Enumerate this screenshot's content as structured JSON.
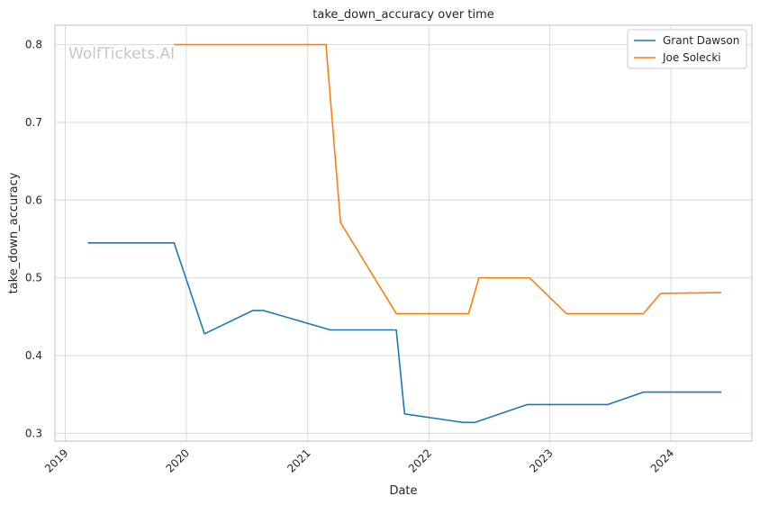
{
  "chart_data": {
    "type": "line",
    "title": "take_down_accuracy over time",
    "xlabel": "Date",
    "ylabel": "take_down_accuracy",
    "watermark": "WolfTickets.AI",
    "xlim": [
      "2018-12-01",
      "2024-09-01"
    ],
    "ylim": [
      0.29,
      0.825
    ],
    "x_ticks": [
      "2019-01-01",
      "2020-01-01",
      "2021-01-01",
      "2022-01-01",
      "2023-01-01",
      "2024-01-01"
    ],
    "x_tick_labels": [
      "2019",
      "2020",
      "2021",
      "2022",
      "2023",
      "2024"
    ],
    "y_ticks": [
      0.3,
      0.4,
      0.5,
      0.6,
      0.7,
      0.8
    ],
    "y_tick_labels": [
      "0.3",
      "0.4",
      "0.5",
      "0.6",
      "0.7",
      "0.8"
    ],
    "grid": true,
    "legend_position": "top-right",
    "series": [
      {
        "name": "Grant Dawson",
        "color": "#1f77b4",
        "points": [
          [
            "2019-03-10",
            0.545
          ],
          [
            "2019-11-25",
            0.545
          ],
          [
            "2020-02-25",
            0.428
          ],
          [
            "2020-07-20",
            0.458
          ],
          [
            "2020-08-20",
            0.458
          ],
          [
            "2021-03-10",
            0.433
          ],
          [
            "2021-09-25",
            0.433
          ],
          [
            "2021-10-20",
            0.325
          ],
          [
            "2022-04-15",
            0.314
          ],
          [
            "2022-05-20",
            0.314
          ],
          [
            "2022-10-25",
            0.337
          ],
          [
            "2023-06-25",
            0.337
          ],
          [
            "2023-10-10",
            0.353
          ],
          [
            "2024-06-01",
            0.353
          ]
        ]
      },
      {
        "name": "Joe Solecki",
        "color": "#ff7f0e",
        "points": [
          [
            "2019-11-25",
            0.8
          ],
          [
            "2021-02-25",
            0.8
          ],
          [
            "2021-04-10",
            0.571
          ],
          [
            "2021-09-25",
            0.454
          ],
          [
            "2022-05-01",
            0.454
          ],
          [
            "2022-06-01",
            0.5
          ],
          [
            "2022-11-01",
            0.5
          ],
          [
            "2023-02-20",
            0.454
          ],
          [
            "2023-10-10",
            0.454
          ],
          [
            "2023-12-01",
            0.48
          ],
          [
            "2024-06-01",
            0.481
          ]
        ]
      }
    ]
  }
}
